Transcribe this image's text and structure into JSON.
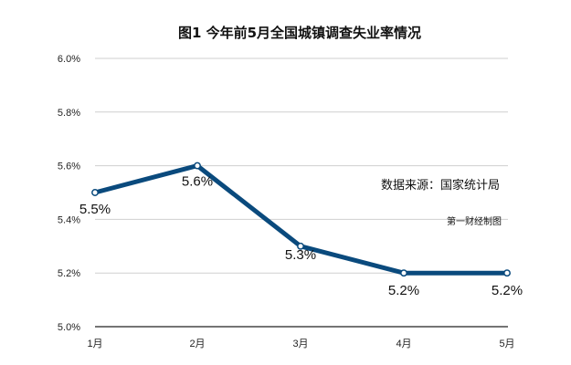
{
  "chart_data": {
    "type": "line",
    "title": "图1 今年前5月全国城镇调查失业率情况",
    "categories": [
      "1月",
      "2月",
      "3月",
      "4月",
      "5月"
    ],
    "series": [
      {
        "values": [
          5.5,
          5.6,
          5.3,
          5.2,
          5.2
        ]
      }
    ],
    "data_labels": [
      "5.5%",
      "5.6%",
      "5.3%",
      "5.2%",
      "5.2%"
    ],
    "y_ticks": [
      {
        "value": 5.0,
        "label": "5.0%"
      },
      {
        "value": 5.2,
        "label": "5.2%"
      },
      {
        "value": 5.4,
        "label": "5.4%"
      },
      {
        "value": 5.6,
        "label": "5.6%"
      },
      {
        "value": 5.8,
        "label": "5.8%"
      },
      {
        "value": 6.0,
        "label": "6.0%"
      }
    ],
    "ylim": [
      5.0,
      6.0
    ],
    "grid": true,
    "legend": "none",
    "line_color": "#0a4a7d",
    "annotations": {
      "source": "数据来源：国家统计局",
      "credit": "第一财经制图"
    }
  }
}
